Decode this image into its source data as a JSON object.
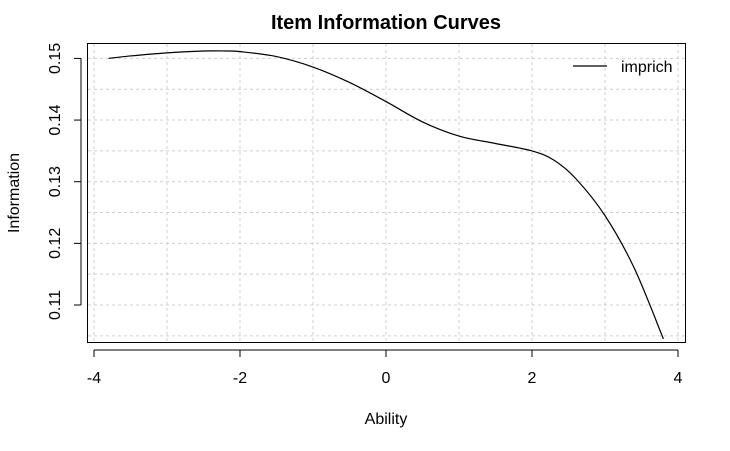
{
  "chart_data": {
    "type": "line",
    "title": "Item Information Curves",
    "xlabel": "Ability",
    "ylabel": "Information",
    "xlim": [
      -4,
      4
    ],
    "ylim": [
      0.104,
      0.1525
    ],
    "x_ticks": [
      -4,
      -2,
      0,
      2,
      4
    ],
    "x_tick_labels": [
      "-4",
      "-2",
      "0",
      "2",
      "4"
    ],
    "y_ticks": [
      0.11,
      0.12,
      0.13,
      0.14,
      0.15
    ],
    "y_tick_labels": [
      "0.11",
      "0.12",
      "0.13",
      "0.14",
      "0.15"
    ],
    "x_grid": [
      -4,
      -3,
      -2,
      -1,
      0,
      1,
      2,
      3,
      4
    ],
    "y_grid": [
      0.105,
      0.11,
      0.115,
      0.12,
      0.125,
      0.13,
      0.135,
      0.14,
      0.145,
      0.15
    ],
    "grid": true,
    "legend": {
      "position": "top-right",
      "entries": [
        "imprich"
      ]
    },
    "series": [
      {
        "name": "imprich",
        "color": "#000000",
        "x": [
          -3.8,
          -3.5,
          -3.0,
          -2.5,
          -2.2,
          -2.0,
          -1.5,
          -1.0,
          -0.5,
          0.0,
          0.5,
          1.0,
          1.5,
          2.0,
          2.3,
          2.6,
          3.0,
          3.4,
          3.8
        ],
        "y": [
          0.15,
          0.1504,
          0.1509,
          0.1512,
          0.1512,
          0.1511,
          0.1503,
          0.1486,
          0.1461,
          0.143,
          0.1397,
          0.1374,
          0.1362,
          0.135,
          0.1335,
          0.1305,
          0.1245,
          0.116,
          0.1045
        ]
      }
    ]
  }
}
